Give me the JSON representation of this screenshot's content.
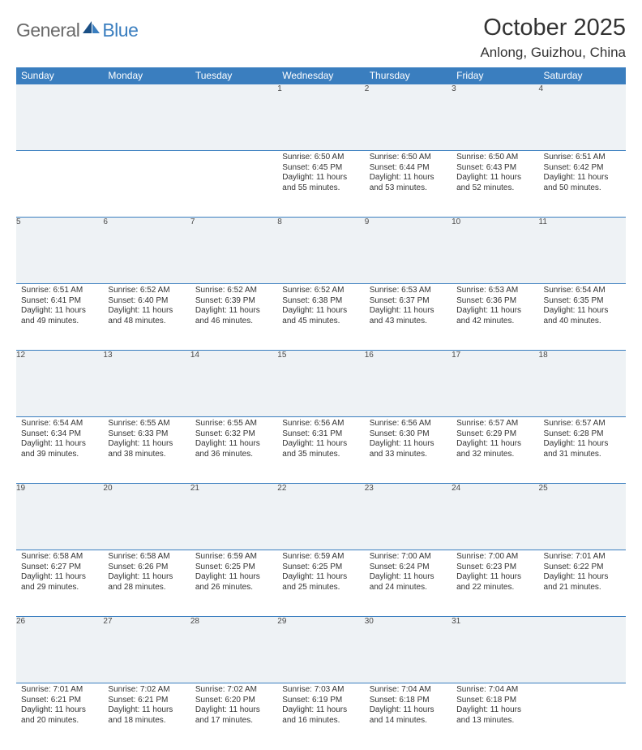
{
  "brand": {
    "part1": "General",
    "part2": "Blue"
  },
  "title": "October 2025",
  "location": "Anlong, Guizhou, China",
  "header_bg": "#3a7ebf",
  "daynum_bg": "#eef2f5",
  "text_color": "#333333",
  "days": [
    "Sunday",
    "Monday",
    "Tuesday",
    "Wednesday",
    "Thursday",
    "Friday",
    "Saturday"
  ],
  "weeks": [
    [
      null,
      null,
      null,
      {
        "n": "1",
        "sr": "6:50 AM",
        "ss": "6:45 PM",
        "dh": "11",
        "dm": "55"
      },
      {
        "n": "2",
        "sr": "6:50 AM",
        "ss": "6:44 PM",
        "dh": "11",
        "dm": "53"
      },
      {
        "n": "3",
        "sr": "6:50 AM",
        "ss": "6:43 PM",
        "dh": "11",
        "dm": "52"
      },
      {
        "n": "4",
        "sr": "6:51 AM",
        "ss": "6:42 PM",
        "dh": "11",
        "dm": "50"
      }
    ],
    [
      {
        "n": "5",
        "sr": "6:51 AM",
        "ss": "6:41 PM",
        "dh": "11",
        "dm": "49"
      },
      {
        "n": "6",
        "sr": "6:52 AM",
        "ss": "6:40 PM",
        "dh": "11",
        "dm": "48"
      },
      {
        "n": "7",
        "sr": "6:52 AM",
        "ss": "6:39 PM",
        "dh": "11",
        "dm": "46"
      },
      {
        "n": "8",
        "sr": "6:52 AM",
        "ss": "6:38 PM",
        "dh": "11",
        "dm": "45"
      },
      {
        "n": "9",
        "sr": "6:53 AM",
        "ss": "6:37 PM",
        "dh": "11",
        "dm": "43"
      },
      {
        "n": "10",
        "sr": "6:53 AM",
        "ss": "6:36 PM",
        "dh": "11",
        "dm": "42"
      },
      {
        "n": "11",
        "sr": "6:54 AM",
        "ss": "6:35 PM",
        "dh": "11",
        "dm": "40"
      }
    ],
    [
      {
        "n": "12",
        "sr": "6:54 AM",
        "ss": "6:34 PM",
        "dh": "11",
        "dm": "39"
      },
      {
        "n": "13",
        "sr": "6:55 AM",
        "ss": "6:33 PM",
        "dh": "11",
        "dm": "38"
      },
      {
        "n": "14",
        "sr": "6:55 AM",
        "ss": "6:32 PM",
        "dh": "11",
        "dm": "36"
      },
      {
        "n": "15",
        "sr": "6:56 AM",
        "ss": "6:31 PM",
        "dh": "11",
        "dm": "35"
      },
      {
        "n": "16",
        "sr": "6:56 AM",
        "ss": "6:30 PM",
        "dh": "11",
        "dm": "33"
      },
      {
        "n": "17",
        "sr": "6:57 AM",
        "ss": "6:29 PM",
        "dh": "11",
        "dm": "32"
      },
      {
        "n": "18",
        "sr": "6:57 AM",
        "ss": "6:28 PM",
        "dh": "11",
        "dm": "31"
      }
    ],
    [
      {
        "n": "19",
        "sr": "6:58 AM",
        "ss": "6:27 PM",
        "dh": "11",
        "dm": "29"
      },
      {
        "n": "20",
        "sr": "6:58 AM",
        "ss": "6:26 PM",
        "dh": "11",
        "dm": "28"
      },
      {
        "n": "21",
        "sr": "6:59 AM",
        "ss": "6:25 PM",
        "dh": "11",
        "dm": "26"
      },
      {
        "n": "22",
        "sr": "6:59 AM",
        "ss": "6:25 PM",
        "dh": "11",
        "dm": "25"
      },
      {
        "n": "23",
        "sr": "7:00 AM",
        "ss": "6:24 PM",
        "dh": "11",
        "dm": "24"
      },
      {
        "n": "24",
        "sr": "7:00 AM",
        "ss": "6:23 PM",
        "dh": "11",
        "dm": "22"
      },
      {
        "n": "25",
        "sr": "7:01 AM",
        "ss": "6:22 PM",
        "dh": "11",
        "dm": "21"
      }
    ],
    [
      {
        "n": "26",
        "sr": "7:01 AM",
        "ss": "6:21 PM",
        "dh": "11",
        "dm": "20"
      },
      {
        "n": "27",
        "sr": "7:02 AM",
        "ss": "6:21 PM",
        "dh": "11",
        "dm": "18"
      },
      {
        "n": "28",
        "sr": "7:02 AM",
        "ss": "6:20 PM",
        "dh": "11",
        "dm": "17"
      },
      {
        "n": "29",
        "sr": "7:03 AM",
        "ss": "6:19 PM",
        "dh": "11",
        "dm": "16"
      },
      {
        "n": "30",
        "sr": "7:04 AM",
        "ss": "6:18 PM",
        "dh": "11",
        "dm": "14"
      },
      {
        "n": "31",
        "sr": "7:04 AM",
        "ss": "6:18 PM",
        "dh": "11",
        "dm": "13"
      },
      null
    ]
  ],
  "labels": {
    "sunrise": "Sunrise:",
    "sunset": "Sunset:",
    "daylight_prefix": "Daylight:",
    "hours_word": "hours",
    "and_word": "and",
    "minutes_word": "minutes."
  }
}
